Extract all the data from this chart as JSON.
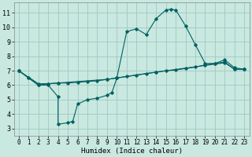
{
  "xlabel": "Humidex (Indice chaleur)",
  "bg_color": "#c8e8e0",
  "grid_color": "#a0c8c0",
  "line_color": "#006060",
  "xlim": [
    -0.5,
    23.5
  ],
  "ylim": [
    2.5,
    11.7
  ],
  "yticks": [
    3,
    4,
    5,
    6,
    7,
    8,
    9,
    10,
    11
  ],
  "xticks": [
    0,
    1,
    2,
    3,
    4,
    5,
    6,
    7,
    8,
    9,
    10,
    11,
    12,
    13,
    14,
    15,
    16,
    17,
    18,
    19,
    20,
    21,
    22,
    23
  ],
  "series1": [
    [
      0,
      7.0
    ],
    [
      1,
      6.5
    ],
    [
      2,
      6.0
    ],
    [
      3,
      6.0
    ],
    [
      4,
      5.2
    ],
    [
      4,
      3.3
    ],
    [
      5,
      3.4
    ],
    [
      5.5,
      3.5
    ],
    [
      6,
      4.7
    ],
    [
      7,
      5.0
    ],
    [
      8,
      5.1
    ],
    [
      9,
      5.3
    ],
    [
      9.5,
      5.5
    ],
    [
      10,
      6.5
    ],
    [
      11,
      9.7
    ],
    [
      12,
      9.9
    ],
    [
      13,
      9.5
    ],
    [
      14,
      10.6
    ],
    [
      15,
      11.2
    ],
    [
      15.5,
      11.25
    ],
    [
      16,
      11.2
    ],
    [
      17,
      10.1
    ],
    [
      18,
      8.8
    ],
    [
      19,
      7.5
    ],
    [
      20,
      7.5
    ],
    [
      21,
      7.75
    ],
    [
      22,
      7.2
    ],
    [
      23,
      7.1
    ]
  ],
  "series2": [
    [
      0,
      7.0
    ],
    [
      1,
      6.5
    ],
    [
      2,
      6.0
    ],
    [
      3,
      6.1
    ],
    [
      4,
      6.15
    ],
    [
      5,
      6.15
    ],
    [
      6,
      6.2
    ],
    [
      7,
      6.25
    ],
    [
      8,
      6.3
    ],
    [
      9,
      6.4
    ],
    [
      10,
      6.5
    ],
    [
      11,
      6.6
    ],
    [
      12,
      6.7
    ],
    [
      13,
      6.8
    ],
    [
      14,
      6.9
    ],
    [
      15,
      7.0
    ],
    [
      16,
      7.05
    ],
    [
      17,
      7.15
    ],
    [
      18,
      7.25
    ],
    [
      19,
      7.4
    ],
    [
      20,
      7.5
    ],
    [
      21,
      7.6
    ],
    [
      22,
      7.1
    ],
    [
      23,
      7.1
    ]
  ],
  "series3": [
    [
      0,
      7.0
    ],
    [
      2,
      6.1
    ],
    [
      3,
      6.1
    ],
    [
      4,
      6.15
    ],
    [
      9,
      6.4
    ],
    [
      10,
      6.5
    ],
    [
      14,
      6.9
    ],
    [
      21,
      7.55
    ],
    [
      22,
      7.1
    ],
    [
      23,
      7.1
    ]
  ],
  "xlabel_fontsize": 6.5,
  "tick_fontsize": 5.5,
  "ylabel_fontsize": 6
}
